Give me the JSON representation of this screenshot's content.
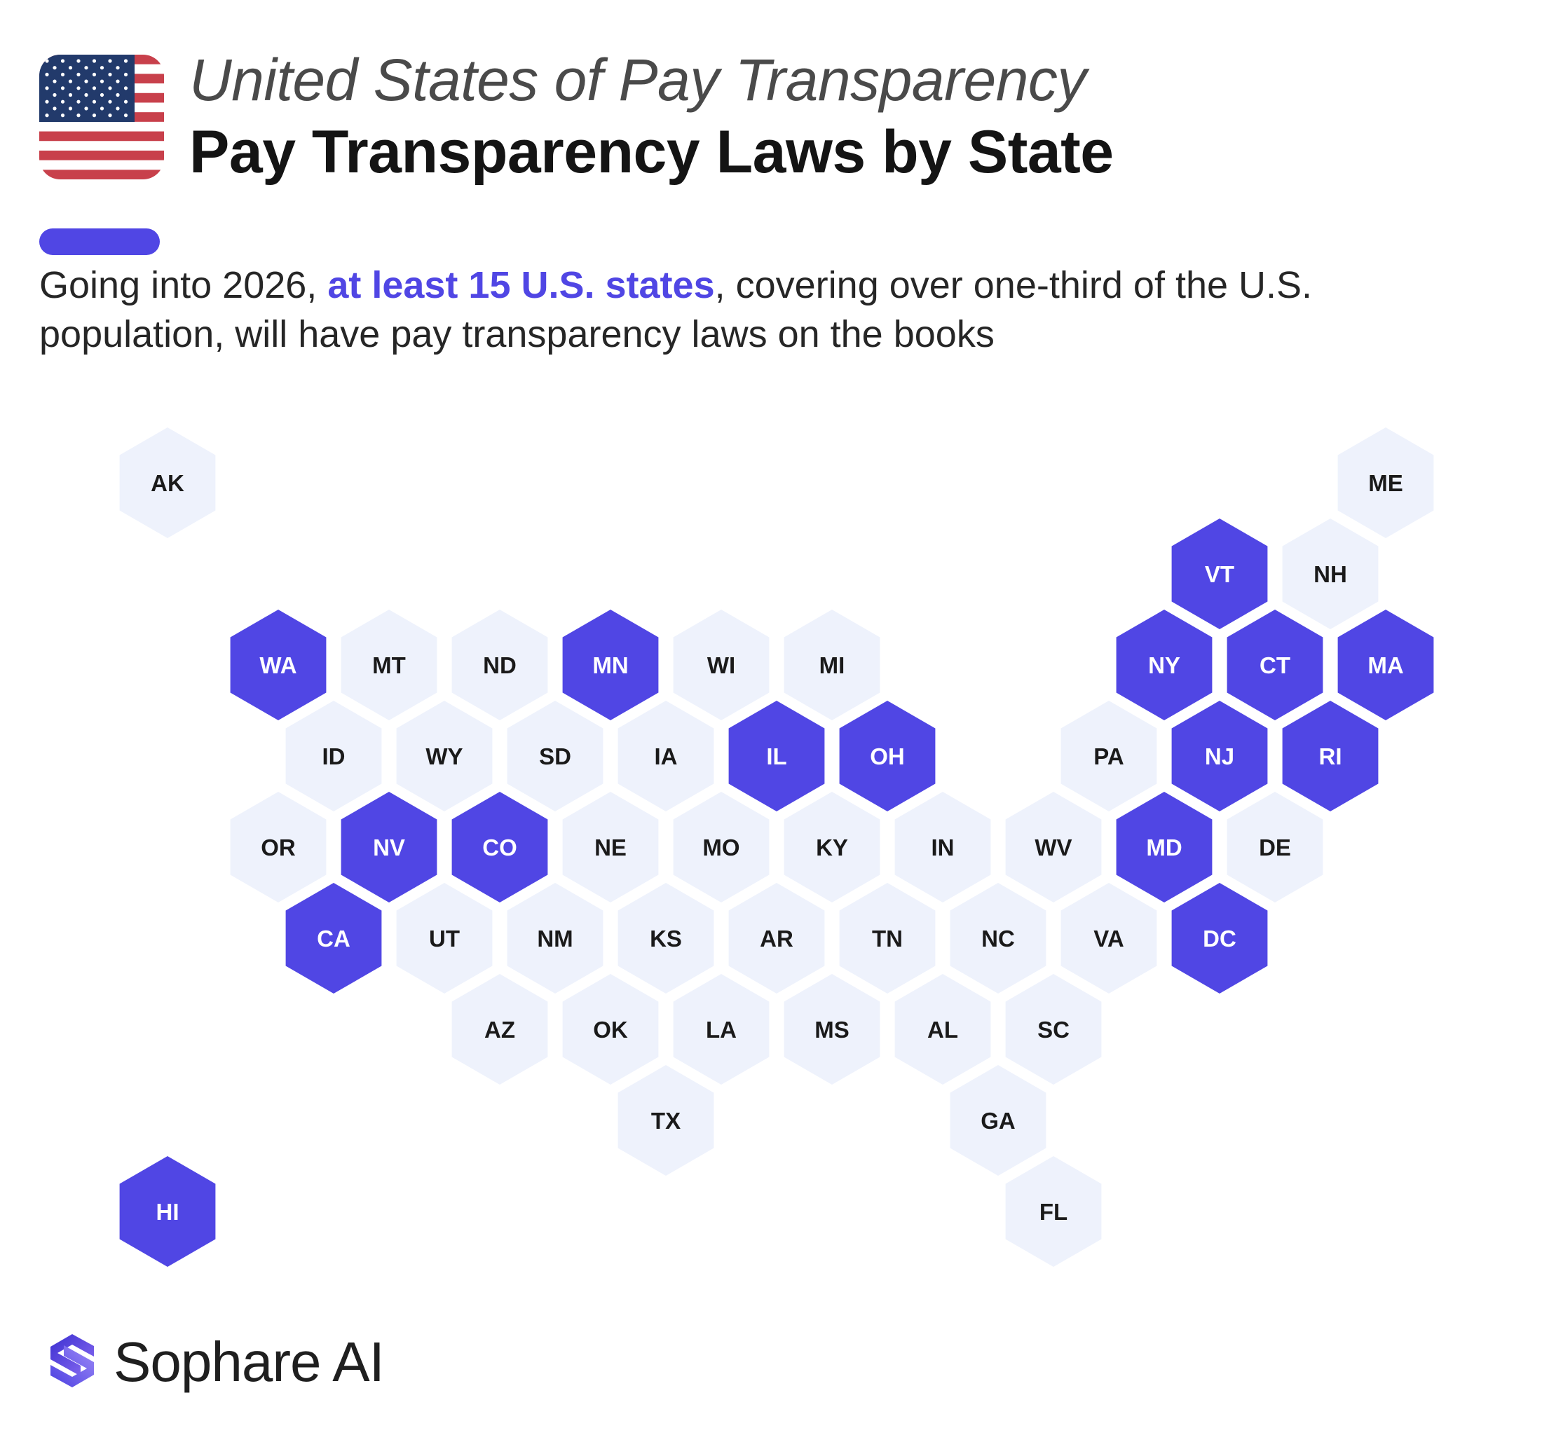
{
  "header": {
    "title_line1": "United States of Pay Transparency",
    "title_line2": "Pay Transparency Laws by State",
    "flag_icon": "us-flag-icon"
  },
  "intro": {
    "before": "Going into 2026, ",
    "highlight": "at least 15 U.S. states",
    "after": ", covering over one-third of the U.S. population, will have pay transparency laws on the books"
  },
  "colors": {
    "accent": "#5046e4",
    "tile_inactive": "#eef2fc",
    "label_active": "#ffffff",
    "label_inactive": "#1a1a1a"
  },
  "legend_states": [
    "WA",
    "MN",
    "NY",
    "CT",
    "MA",
    "VT",
    "IL",
    "OH",
    "NJ",
    "RI",
    "NV",
    "CO",
    "MD",
    "CA",
    "DC",
    "HI"
  ],
  "map": {
    "tiles": [
      {
        "abbr": "AK",
        "row": 0,
        "col": -1,
        "active": false
      },
      {
        "abbr": "ME",
        "row": 0,
        "col": 10,
        "active": false
      },
      {
        "abbr": "VT",
        "row": 1,
        "col": 8,
        "active": true
      },
      {
        "abbr": "NH",
        "row": 1,
        "col": 9,
        "active": false
      },
      {
        "abbr": "WA",
        "row": 2,
        "col": 0,
        "active": true
      },
      {
        "abbr": "MT",
        "row": 2,
        "col": 1,
        "active": false
      },
      {
        "abbr": "ND",
        "row": 2,
        "col": 2,
        "active": false
      },
      {
        "abbr": "MN",
        "row": 2,
        "col": 3,
        "active": true
      },
      {
        "abbr": "WI",
        "row": 2,
        "col": 4,
        "active": false
      },
      {
        "abbr": "MI",
        "row": 2,
        "col": 5,
        "active": false
      },
      {
        "abbr": "NY",
        "row": 2,
        "col": 8,
        "active": true
      },
      {
        "abbr": "CT",
        "row": 2,
        "col": 9,
        "active": true
      },
      {
        "abbr": "MA",
        "row": 2,
        "col": 10,
        "active": true
      },
      {
        "abbr": "ID",
        "row": 3,
        "col": 0,
        "active": false
      },
      {
        "abbr": "WY",
        "row": 3,
        "col": 1,
        "active": false
      },
      {
        "abbr": "SD",
        "row": 3,
        "col": 2,
        "active": false
      },
      {
        "abbr": "IA",
        "row": 3,
        "col": 3,
        "active": false
      },
      {
        "abbr": "IL",
        "row": 3,
        "col": 4,
        "active": true
      },
      {
        "abbr": "OH",
        "row": 3,
        "col": 5,
        "active": true
      },
      {
        "abbr": "PA",
        "row": 3,
        "col": 7,
        "active": false
      },
      {
        "abbr": "NJ",
        "row": 3,
        "col": 8,
        "active": true
      },
      {
        "abbr": "RI",
        "row": 3,
        "col": 9,
        "active": true
      },
      {
        "abbr": "OR",
        "row": 4,
        "col": 0,
        "active": false
      },
      {
        "abbr": "NV",
        "row": 4,
        "col": 1,
        "active": true
      },
      {
        "abbr": "CO",
        "row": 4,
        "col": 2,
        "active": true
      },
      {
        "abbr": "NE",
        "row": 4,
        "col": 3,
        "active": false
      },
      {
        "abbr": "MO",
        "row": 4,
        "col": 4,
        "active": false
      },
      {
        "abbr": "KY",
        "row": 4,
        "col": 5,
        "active": false
      },
      {
        "abbr": "IN",
        "row": 4,
        "col": 6,
        "active": false
      },
      {
        "abbr": "WV",
        "row": 4,
        "col": 7,
        "active": false
      },
      {
        "abbr": "MD",
        "row": 4,
        "col": 8,
        "active": true
      },
      {
        "abbr": "DE",
        "row": 4,
        "col": 9,
        "active": false
      },
      {
        "abbr": "CA",
        "row": 5,
        "col": 0,
        "active": true
      },
      {
        "abbr": "UT",
        "row": 5,
        "col": 1,
        "active": false
      },
      {
        "abbr": "NM",
        "row": 5,
        "col": 2,
        "active": false
      },
      {
        "abbr": "KS",
        "row": 5,
        "col": 3,
        "active": false
      },
      {
        "abbr": "AR",
        "row": 5,
        "col": 4,
        "active": false
      },
      {
        "abbr": "TN",
        "row": 5,
        "col": 5,
        "active": false
      },
      {
        "abbr": "NC",
        "row": 5,
        "col": 6,
        "active": false
      },
      {
        "abbr": "VA",
        "row": 5,
        "col": 7,
        "active": false
      },
      {
        "abbr": "DC",
        "row": 5,
        "col": 8,
        "active": true
      },
      {
        "abbr": "AZ",
        "row": 6,
        "col": 2,
        "active": false
      },
      {
        "abbr": "OK",
        "row": 6,
        "col": 3,
        "active": false
      },
      {
        "abbr": "LA",
        "row": 6,
        "col": 4,
        "active": false
      },
      {
        "abbr": "MS",
        "row": 6,
        "col": 5,
        "active": false
      },
      {
        "abbr": "AL",
        "row": 6,
        "col": 6,
        "active": false
      },
      {
        "abbr": "SC",
        "row": 6,
        "col": 7,
        "active": false
      },
      {
        "abbr": "TX",
        "row": 7,
        "col": 3,
        "active": false
      },
      {
        "abbr": "GA",
        "row": 7,
        "col": 6,
        "active": false
      },
      {
        "abbr": "HI",
        "row": 8,
        "col": -1,
        "active": true
      },
      {
        "abbr": "FL",
        "row": 8,
        "col": 7,
        "active": false
      }
    ]
  },
  "brand": {
    "name": "Sophare AI",
    "logo_icon": "sophare-logo-icon"
  }
}
